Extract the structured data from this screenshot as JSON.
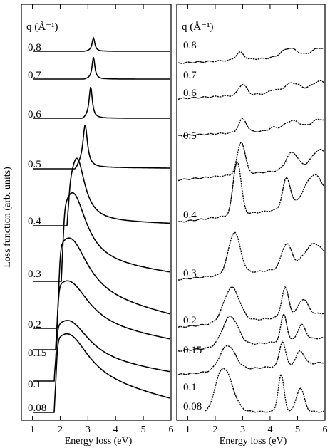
{
  "chart_data": {
    "type": "line",
    "ylabel": "Loss function (arb. units)",
    "xlabel": "Energy loss (eV)",
    "xlim": [
      0.6,
      6
    ],
    "xticks": [
      "1",
      "2",
      "3",
      "4",
      "5",
      "6"
    ],
    "grid": false,
    "legend": "none",
    "panels": [
      {
        "id": "left",
        "header": "q (Å⁻¹)",
        "style": "smooth",
        "series": [
          {
            "name": "0.8",
            "onset": 2.9,
            "peak_x": 3.2,
            "height": 0.47,
            "width": 0.06,
            "tail": 0.0
          },
          {
            "name": "0.7",
            "onset": 2.9,
            "peak_x": 3.2,
            "height": 0.7,
            "width": 0.06,
            "tail": 0.0
          },
          {
            "name": "0.6",
            "onset": 2.85,
            "peak_x": 3.1,
            "height": 0.9,
            "width": 0.07,
            "tail": 0.0
          },
          {
            "name": "0.5",
            "onset": 2.6,
            "peak_x": 2.9,
            "height": 1.1,
            "width": 0.1,
            "tail": 0.04
          },
          {
            "name": "0.4",
            "onset": 2.3,
            "peak_x": 2.6,
            "height": 1.3,
            "width": 0.35,
            "tail": 0.1
          },
          {
            "name": "0.3",
            "onset": 2.1,
            "peak_x": 2.45,
            "height": 1.15,
            "width": 0.6,
            "tail": 0.35
          },
          {
            "name": "0.2",
            "onset": 1.95,
            "peak_x": 2.35,
            "height": 0.8,
            "width": 0.8,
            "tail": 0.5
          },
          {
            "name": "0.15",
            "onset": 1.9,
            "peak_x": 2.3,
            "height": 0.7,
            "width": 0.9,
            "tail": 0.4
          },
          {
            "name": "0.1",
            "onset": 1.85,
            "peak_x": 2.3,
            "height": 0.6,
            "width": 0.9,
            "tail": 0.35
          },
          {
            "name": "0.08",
            "onset": 1.85,
            "peak_x": 2.3,
            "height": 0.65,
            "width": 0.9,
            "tail": 0.55
          }
        ]
      },
      {
        "id": "right",
        "header": "q (Å⁻¹)",
        "style": "dotted",
        "series": [
          {
            "name": "0.8",
            "features": [
              [
                2.9,
                0.25,
                0.2
              ],
              [
                4.7,
                0.3,
                0.4
              ],
              [
                5.8,
                0.25,
                0.4
              ]
            ],
            "rise": 0.05
          },
          {
            "name": "0.7",
            "features": [
              [
                3.0,
                0.35,
                0.2
              ],
              [
                4.1,
                0.1,
                0.2
              ],
              [
                4.8,
                0.3,
                0.4
              ],
              [
                5.8,
                0.3,
                0.4
              ]
            ],
            "rise": 0.05
          },
          {
            "name": "0.6",
            "features": [
              [
                3.0,
                0.45,
                0.2
              ],
              [
                4.1,
                0.1,
                0.2
              ],
              [
                4.8,
                0.3,
                0.4
              ],
              [
                5.8,
                0.3,
                0.4
              ]
            ],
            "rise": 0.05
          },
          {
            "name": "0.5",
            "features": [
              [
                2.95,
                0.65,
                0.2
              ],
              [
                4.8,
                0.35,
                0.3
              ],
              [
                5.8,
                0.35,
                0.4
              ]
            ],
            "rise": 0.05
          },
          {
            "name": "0.4",
            "features": [
              [
                2.8,
                0.8,
                0.2
              ],
              [
                4.6,
                0.45,
                0.2
              ],
              [
                5.6,
                0.45,
                0.5
              ]
            ],
            "rise": 0.05
          },
          {
            "name": "0.3",
            "features": [
              [
                2.7,
                0.75,
                0.3
              ],
              [
                4.6,
                0.45,
                0.25
              ],
              [
                5.6,
                0.4,
                0.5
              ]
            ],
            "rise": 0.05
          },
          {
            "name": "0.2",
            "features": [
              [
                2.6,
                0.65,
                0.4
              ],
              [
                4.55,
                0.55,
                0.18
              ],
              [
                5.2,
                0.3,
                0.25
              ]
            ],
            "rise": 0.05
          },
          {
            "name": "0.15",
            "features": [
              [
                2.55,
                0.6,
                0.4
              ],
              [
                4.5,
                0.55,
                0.15
              ],
              [
                5.15,
                0.3,
                0.2
              ]
            ],
            "rise": 0.05
          },
          {
            "name": "0.1",
            "features": [
              [
                2.45,
                0.55,
                0.4
              ],
              [
                4.45,
                0.55,
                0.15
              ],
              [
                5.1,
                0.3,
                0.2
              ]
            ],
            "rise": 0.05
          },
          {
            "name": "0.08",
            "features": [
              [
                2.3,
                0.65,
                0.45
              ],
              [
                4.4,
                0.55,
                0.15
              ],
              [
                5.1,
                0.35,
                0.2
              ]
            ],
            "rise": 0.0
          }
        ]
      }
    ]
  }
}
